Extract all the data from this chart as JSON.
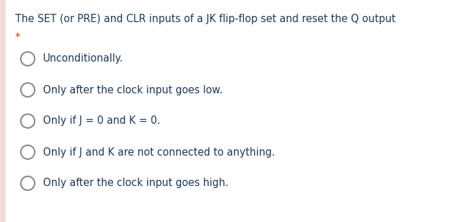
{
  "background_color": "#ffffff",
  "left_border_color": "#f0ddd8",
  "title_text": "The SET (or PRE) and CLR inputs of a JK flip-flop set and reset the Q output",
  "title_color": "#1a3a5c",
  "asterisk_text": "*",
  "asterisk_color": "#cc3300",
  "options": [
    "Unconditionally.",
    "Only after the clock input goes low.",
    "Only if J = 0 and K = 0.",
    "Only if J and K are not connected to anything.",
    "Only after the clock input goes high."
  ],
  "option_color": "#1a3a5c",
  "circle_edge_color": "#888888",
  "circle_face_color": "#ffffff",
  "circle_linewidth": 1.5,
  "font_size": 10.5,
  "title_font_size": 10.5
}
